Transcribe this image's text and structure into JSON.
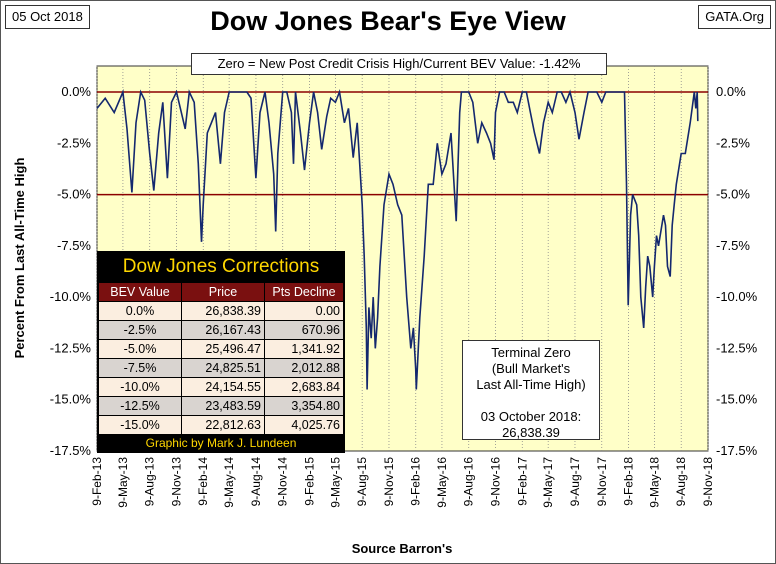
{
  "header": {
    "date": "05 Oct 2018",
    "source": "GATA.Org",
    "title": "Dow Jones Bear's Eye View"
  },
  "note": "Zero = New Post Credit Crisis High/Current BEV Value:  -1.42%",
  "terminal": {
    "line1": "Terminal Zero",
    "line2": "(Bull Market's",
    "line3": "Last All-Time High)",
    "line4": "03 October 2018:",
    "line5": "26,838.39"
  },
  "corrections": {
    "title": "Dow Jones Corrections",
    "headers": [
      "BEV Value",
      "Price",
      "Pts Decline"
    ],
    "rows": [
      [
        "0.0%",
        "26,838.39",
        "0.00"
      ],
      [
        "-2.5%",
        "26,167.43",
        "670.96"
      ],
      [
        "-5.0%",
        "25,496.47",
        "1,341.92"
      ],
      [
        "-7.5%",
        "24,825.51",
        "2,012.88"
      ],
      [
        "-10.0%",
        "24,154.55",
        "2,683.84"
      ],
      [
        "-12.5%",
        "23,483.59",
        "3,354.80"
      ],
      [
        "-15.0%",
        "22,812.63",
        "4,025.76"
      ]
    ],
    "credit": "Graphic by Mark J. Lundeen"
  },
  "colors": {
    "plot_bg": "#ffffc8",
    "series": "#14286e",
    "ref_line": "#8b0000"
  },
  "chart_data": {
    "type": "line",
    "ylabel": "Percent From Last All-Time High",
    "xlabel": "Source Barron's",
    "ylim": [
      -17.5,
      0
    ],
    "yticks": [
      "0.0%",
      "-2.5%",
      "-5.0%",
      "-7.5%",
      "-10.0%",
      "-12.5%",
      "-15.0%",
      "-17.5%"
    ],
    "xticks": [
      "9-Feb-13",
      "9-May-13",
      "9-Aug-13",
      "9-Nov-13",
      "9-Feb-14",
      "9-May-14",
      "9-Aug-14",
      "9-Nov-14",
      "9-Feb-15",
      "9-May-15",
      "9-Aug-15",
      "9-Nov-15",
      "9-Feb-16",
      "9-May-16",
      "9-Aug-16",
      "9-Nov-16",
      "9-Feb-17",
      "9-May-17",
      "9-Aug-17",
      "9-Nov-17",
      "9-Feb-18",
      "9-May-18",
      "9-Aug-18",
      "9-Nov-18"
    ],
    "reference_lines": [
      0,
      -5
    ],
    "grid": "vertical",
    "series": [
      {
        "points": [
          [
            "9-Feb-13",
            -0.8
          ],
          [
            "9-Mar-13",
            -0.3
          ],
          [
            "9-Apr-13",
            -1.0
          ],
          [
            "9-May-13",
            0
          ],
          [
            "23-May-13",
            -1.8
          ],
          [
            "9-Jun-13",
            -4.9
          ],
          [
            "23-Jun-13",
            -1.5
          ],
          [
            "9-Jul-13",
            0
          ],
          [
            "23-Jul-13",
            -0.4
          ],
          [
            "9-Aug-13",
            -3.0
          ],
          [
            "23-Aug-13",
            -4.8
          ],
          [
            "9-Sep-13",
            -2.0
          ],
          [
            "23-Sep-13",
            -0.5
          ],
          [
            "9-Oct-13",
            -4.2
          ],
          [
            "23-Oct-13",
            -0.5
          ],
          [
            "9-Nov-13",
            0
          ],
          [
            "9-Dec-13",
            -1.8
          ],
          [
            "23-Dec-13",
            0
          ],
          [
            "9-Jan-14",
            -0.5
          ],
          [
            "23-Jan-14",
            -3.5
          ],
          [
            "3-Feb-14",
            -7.3
          ],
          [
            "9-Feb-14",
            -5.5
          ],
          [
            "23-Feb-14",
            -2.0
          ],
          [
            "9-Mar-14",
            -1.5
          ],
          [
            "23-Mar-14",
            -1.0
          ],
          [
            "9-Apr-14",
            -3.5
          ],
          [
            "23-Apr-14",
            -1.0
          ],
          [
            "9-May-14",
            0
          ],
          [
            "9-Jun-14",
            0
          ],
          [
            "9-Jul-14",
            0
          ],
          [
            "23-Jul-14",
            -0.3
          ],
          [
            "9-Aug-14",
            -4.2
          ],
          [
            "23-Aug-14",
            -1.0
          ],
          [
            "9-Sep-14",
            0
          ],
          [
            "23-Sep-14",
            -1.5
          ],
          [
            "9-Oct-14",
            -4.0
          ],
          [
            "16-Oct-14",
            -6.8
          ],
          [
            "23-Oct-14",
            -3.0
          ],
          [
            "9-Nov-14",
            0
          ],
          [
            "23-Nov-14",
            0
          ],
          [
            "9-Dec-14",
            -1.0
          ],
          [
            "16-Dec-14",
            -3.5
          ],
          [
            "23-Dec-14",
            0
          ],
          [
            "9-Jan-15",
            -2.0
          ],
          [
            "23-Jan-15",
            -3.8
          ],
          [
            "9-Feb-15",
            -1.5
          ],
          [
            "23-Feb-15",
            0
          ],
          [
            "9-Mar-15",
            -1.0
          ],
          [
            "23-Mar-15",
            -2.8
          ],
          [
            "9-Apr-15",
            -1.2
          ],
          [
            "23-Apr-15",
            -0.3
          ],
          [
            "9-May-15",
            -0.5
          ],
          [
            "23-May-15",
            0
          ],
          [
            "9-Jun-15",
            -1.5
          ],
          [
            "23-Jun-15",
            -0.8
          ],
          [
            "9-Jul-15",
            -3.2
          ],
          [
            "23-Jul-15",
            -1.5
          ],
          [
            "9-Aug-15",
            -5.5
          ],
          [
            "16-Aug-15",
            -8.0
          ],
          [
            "23-Aug-15",
            -11.5
          ],
          [
            "26-Aug-15",
            -14.5
          ],
          [
            "1-Sep-15",
            -10.5
          ],
          [
            "9-Sep-15",
            -12.0
          ],
          [
            "16-Sep-15",
            -10.0
          ],
          [
            "23-Sep-15",
            -12.5
          ],
          [
            "1-Oct-15",
            -11.0
          ],
          [
            "9-Oct-15",
            -8.5
          ],
          [
            "23-Oct-15",
            -5.5
          ],
          [
            "9-Nov-15",
            -4.0
          ],
          [
            "23-Nov-15",
            -4.5
          ],
          [
            "9-Dec-15",
            -5.5
          ],
          [
            "23-Dec-15",
            -6.0
          ],
          [
            "9-Jan-16",
            -10.0
          ],
          [
            "23-Jan-16",
            -12.5
          ],
          [
            "1-Feb-16",
            -11.5
          ],
          [
            "9-Feb-16",
            -13.5
          ],
          [
            "11-Feb-16",
            -14.5
          ],
          [
            "23-Feb-16",
            -11.0
          ],
          [
            "9-Mar-16",
            -8.0
          ],
          [
            "23-Mar-16",
            -4.5
          ],
          [
            "9-Apr-16",
            -4.5
          ],
          [
            "23-Apr-16",
            -2.5
          ],
          [
            "9-May-16",
            -4.0
          ],
          [
            "23-May-16",
            -3.5
          ],
          [
            "9-Jun-16",
            -2.0
          ],
          [
            "27-Jun-16",
            -6.3
          ],
          [
            "9-Jul-16",
            -1.0
          ],
          [
            "15-Jul-16",
            0
          ],
          [
            "23-Jul-16",
            0
          ],
          [
            "9-Aug-16",
            0
          ],
          [
            "23-Aug-16",
            -0.5
          ],
          [
            "9-Sep-16",
            -2.5
          ],
          [
            "23-Sep-16",
            -1.5
          ],
          [
            "9-Oct-16",
            -2.0
          ],
          [
            "23-Oct-16",
            -2.5
          ],
          [
            "4-Nov-16",
            -3.3
          ],
          [
            "9-Nov-16",
            -1.0
          ],
          [
            "23-Nov-16",
            0
          ],
          [
            "9-Dec-16",
            0
          ],
          [
            "23-Dec-16",
            -0.5
          ],
          [
            "9-Jan-17",
            -0.5
          ],
          [
            "23-Jan-17",
            -1.0
          ],
          [
            "9-Feb-17",
            0
          ],
          [
            "23-Feb-17",
            0
          ],
          [
            "9-Mar-17",
            -1.0
          ],
          [
            "23-Mar-17",
            -2.0
          ],
          [
            "9-Apr-17",
            -3.0
          ],
          [
            "23-Apr-17",
            -1.5
          ],
          [
            "9-May-17",
            -0.5
          ],
          [
            "23-May-17",
            -1.0
          ],
          [
            "9-Jun-17",
            0
          ],
          [
            "23-Jun-17",
            0
          ],
          [
            "9-Jul-17",
            -0.5
          ],
          [
            "23-Jul-17",
            0
          ],
          [
            "9-Aug-17",
            -1.0
          ],
          [
            "23-Aug-17",
            -2.3
          ],
          [
            "9-Sep-17",
            -1.0
          ],
          [
            "23-Sep-17",
            0
          ],
          [
            "9-Oct-17",
            0
          ],
          [
            "23-Oct-17",
            0
          ],
          [
            "9-Nov-17",
            -0.5
          ],
          [
            "23-Nov-17",
            0
          ],
          [
            "9-Dec-17",
            0
          ],
          [
            "23-Dec-17",
            0
          ],
          [
            "9-Jan-18",
            0
          ],
          [
            "26-Jan-18",
            0
          ],
          [
            "2-Feb-18",
            -4.5
          ],
          [
            "8-Feb-18",
            -10.4
          ],
          [
            "16-Feb-18",
            -6.0
          ],
          [
            "23-Feb-18",
            -5.0
          ],
          [
            "9-Mar-18",
            -5.5
          ],
          [
            "16-Mar-18",
            -7.0
          ],
          [
            "23-Mar-18",
            -10.0
          ],
          [
            "2-Apr-18",
            -11.5
          ],
          [
            "9-Apr-18",
            -9.5
          ],
          [
            "16-Apr-18",
            -8.0
          ],
          [
            "23-Apr-18",
            -8.5
          ],
          [
            "3-May-18",
            -10.0
          ],
          [
            "9-May-18",
            -8.5
          ],
          [
            "16-May-18",
            -7.0
          ],
          [
            "23-May-18",
            -7.5
          ],
          [
            "9-Jun-18",
            -6.0
          ],
          [
            "16-Jun-18",
            -6.5
          ],
          [
            "23-Jun-18",
            -8.5
          ],
          [
            "2-Jul-18",
            -9.0
          ],
          [
            "9-Jul-18",
            -6.5
          ],
          [
            "16-Jul-18",
            -5.5
          ],
          [
            "23-Jul-18",
            -4.5
          ],
          [
            "9-Aug-18",
            -3.0
          ],
          [
            "23-Aug-18",
            -3.0
          ],
          [
            "9-Sep-18",
            -1.5
          ],
          [
            "23-Sep-18",
            0
          ],
          [
            "28-Sep-18",
            -0.8
          ],
          [
            "3-Oct-18",
            0
          ],
          [
            "5-Oct-18",
            -1.42
          ]
        ]
      }
    ]
  }
}
